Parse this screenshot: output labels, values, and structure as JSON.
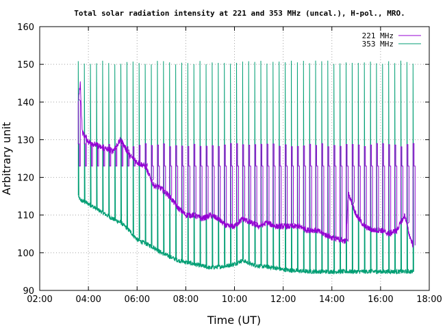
{
  "chart_data": {
    "type": "line",
    "title": "Total solar radiation intensity at 221 and 353 MHz (uncal.), H-pol., MRO.",
    "xlabel": "Time (UT)",
    "ylabel": "Arbitrary unit",
    "xlim": [
      "02:00",
      "18:00"
    ],
    "ylim": [
      90,
      160
    ],
    "x_ticks": [
      "02:00",
      "04:00",
      "06:00",
      "08:00",
      "10:00",
      "12:00",
      "14:00",
      "16:00",
      "18:00"
    ],
    "y_ticks": [
      90,
      100,
      110,
      120,
      130,
      140,
      150,
      160
    ],
    "grid": true,
    "legend_position": "top-right",
    "series": [
      {
        "name": "221 MHz",
        "color": "#9400d3",
        "baseline": [
          [
            "03:35",
            140
          ],
          [
            "03:40",
            145
          ],
          [
            "03:45",
            132
          ],
          [
            "04:00",
            129.5
          ],
          [
            "04:30",
            128
          ],
          [
            "05:00",
            127
          ],
          [
            "05:20",
            130
          ],
          [
            "05:40",
            126
          ],
          [
            "06:00",
            124
          ],
          [
            "06:20",
            123
          ],
          [
            "06:40",
            118
          ],
          [
            "07:00",
            117
          ],
          [
            "07:20",
            115
          ],
          [
            "07:40",
            112
          ],
          [
            "08:00",
            110
          ],
          [
            "08:20",
            110
          ],
          [
            "08:40",
            109
          ],
          [
            "09:00",
            110
          ],
          [
            "09:20",
            109
          ],
          [
            "09:40",
            107
          ],
          [
            "10:00",
            107
          ],
          [
            "10:20",
            109
          ],
          [
            "10:40",
            108
          ],
          [
            "11:00",
            107
          ],
          [
            "11:20",
            108
          ],
          [
            "11:40",
            107
          ],
          [
            "12:00",
            107
          ],
          [
            "12:20",
            107
          ],
          [
            "12:40",
            107
          ],
          [
            "13:00",
            106
          ],
          [
            "13:20",
            106
          ],
          [
            "13:40",
            105
          ],
          [
            "14:00",
            104
          ],
          [
            "14:20",
            103.5
          ],
          [
            "14:35",
            103
          ],
          [
            "14:40",
            116
          ],
          [
            "15:00",
            110
          ],
          [
            "15:20",
            107
          ],
          [
            "15:40",
            106
          ],
          [
            "16:00",
            106
          ],
          [
            "16:20",
            105
          ],
          [
            "16:40",
            106
          ],
          [
            "17:00",
            110
          ],
          [
            "17:10",
            105
          ],
          [
            "17:20",
            102
          ]
        ],
        "pulses": {
          "low": 123,
          "high": 128.5
        }
      },
      {
        "name": "353 MHz",
        "color": "#009e73",
        "baseline": [
          [
            "03:35",
            115
          ],
          [
            "03:40",
            114
          ],
          [
            "04:00",
            113
          ],
          [
            "04:30",
            111
          ],
          [
            "05:00",
            109
          ],
          [
            "05:20",
            108
          ],
          [
            "05:40",
            106
          ],
          [
            "06:00",
            103.5
          ],
          [
            "06:20",
            102.5
          ],
          [
            "06:40",
            101.5
          ],
          [
            "07:00",
            100
          ],
          [
            "07:20",
            99
          ],
          [
            "07:40",
            98
          ],
          [
            "08:00",
            97.5
          ],
          [
            "08:40",
            96.5
          ],
          [
            "09:00",
            96
          ],
          [
            "09:40",
            96.5
          ],
          [
            "10:00",
            97
          ],
          [
            "10:20",
            98
          ],
          [
            "10:40",
            97
          ],
          [
            "11:00",
            96.5
          ],
          [
            "11:40",
            96
          ],
          [
            "12:00",
            95.5
          ],
          [
            "13:00",
            95
          ],
          [
            "14:00",
            95
          ],
          [
            "15:00",
            95
          ],
          [
            "16:00",
            95
          ],
          [
            "17:00",
            95
          ],
          [
            "17:20",
            95
          ]
        ],
        "pulses": {
          "high": 150.5
        }
      }
    ],
    "pulse_interval_minutes": 15,
    "pulse_start": "03:35",
    "pulse_end": "17:20"
  }
}
